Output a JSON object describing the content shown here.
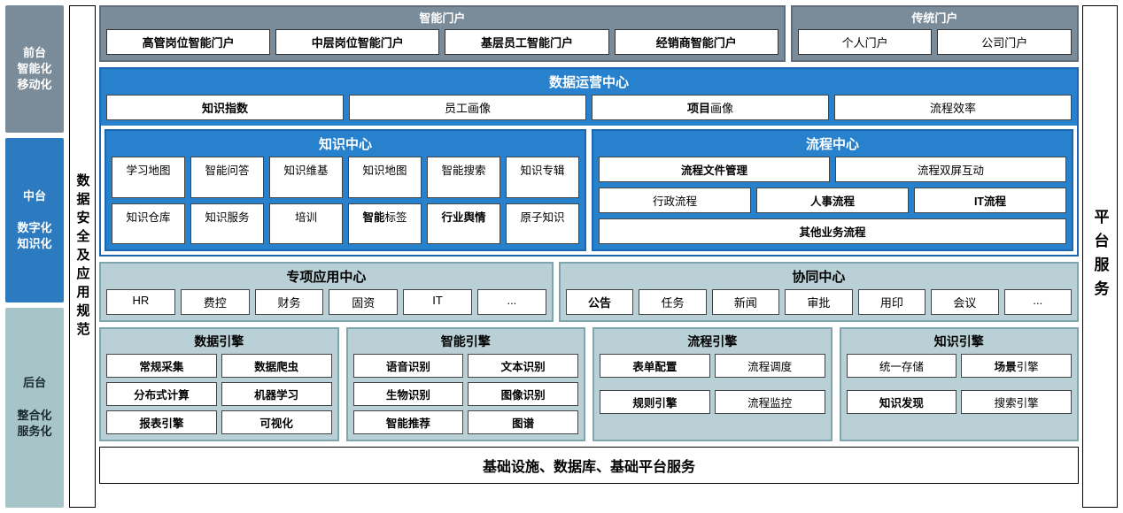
{
  "colors": {
    "gray_panel": "#7a8b99",
    "blue_panel": "#2781cc",
    "blue_border": "#1a66b0",
    "teal_panel": "#b9d1d6",
    "teal_border": "#7fa5ad",
    "white": "#ffffff",
    "black": "#000000"
  },
  "left": {
    "top": "前台\n智能化\n移动化",
    "mid": "中台\n　\n数字化\n知识化",
    "bot": "后台\n　\n整合化\n服务化"
  },
  "security": "数据安全及应用规范",
  "right": "平台服务",
  "portal": {
    "smart": {
      "title": "智能门户",
      "items": [
        "高管岗位智能门户",
        "中层岗位智能门户",
        "基层员工智能门户",
        "经销商智能门户"
      ]
    },
    "legacy": {
      "title": "传统门户",
      "items": [
        "个人门户",
        "公司门户"
      ]
    }
  },
  "dops": {
    "title": "数据运营中心",
    "items": [
      {
        "label": "知识指数",
        "bold": true
      },
      {
        "label": "员工画像",
        "bold": false
      },
      {
        "label": "项目画像",
        "bold_part": "项目",
        "rest": "画像"
      },
      {
        "label": "流程效率",
        "bold": false
      }
    ]
  },
  "knowledge_center": {
    "title": "知识中心",
    "row1": [
      "学习地图",
      "智能问答",
      "知识维基",
      "知识地图",
      "智能搜索",
      "知识专辑"
    ],
    "row2": [
      {
        "t": "知识仓库"
      },
      {
        "t": "知识服务"
      },
      {
        "t": "培训"
      },
      {
        "bold_part": "智能",
        "rest": "标签"
      },
      {
        "t": "行业舆情",
        "bold": true
      },
      {
        "t": "原子知识"
      }
    ]
  },
  "process_center": {
    "title": "流程中心",
    "row1": [
      {
        "t": "流程文件管理",
        "bold": true,
        "span": 3
      },
      {
        "t": "流程双屏互动",
        "span": 3
      }
    ],
    "row2": [
      {
        "t": "行政流程",
        "span": 2
      },
      {
        "t": "人事流程",
        "bold": true,
        "span": 2
      },
      {
        "t": "IT流程",
        "bold": true,
        "span": 2
      }
    ],
    "row3": [
      {
        "t": "其他业务流程",
        "bold": true,
        "span": 6
      }
    ]
  },
  "special_app": {
    "title": "专项应用中心",
    "items": [
      "HR",
      "费控",
      "财务",
      "固资",
      "IT",
      "..."
    ]
  },
  "collab": {
    "title": "协同中心",
    "items": [
      {
        "t": "公告",
        "bold": true
      },
      {
        "t": "任务"
      },
      {
        "t": "新闻"
      },
      {
        "t": "审批"
      },
      {
        "t": "用印"
      },
      {
        "t": "会议"
      },
      {
        "t": "..."
      }
    ]
  },
  "engines": {
    "data": {
      "title": "数据引擎",
      "items": [
        {
          "t": "常规采集",
          "bold": true
        },
        {
          "t": "数据爬虫",
          "bold": true
        },
        {
          "t": "分布式计算",
          "bold": true
        },
        {
          "t": "机器学习",
          "bold": true
        },
        {
          "t": "报表引擎",
          "bold": true
        },
        {
          "t": "可视化",
          "bold": true
        }
      ]
    },
    "smart": {
      "title": "智能引擎",
      "items": [
        {
          "t": "语音识别",
          "bold": true
        },
        {
          "t": "文本识别",
          "bold": true
        },
        {
          "t": "生物识别",
          "bold": true
        },
        {
          "t": "图像识别",
          "bold": true
        },
        {
          "t": "智能推荐",
          "bold": true
        },
        {
          "t": "图谱",
          "bold": true
        }
      ]
    },
    "process": {
      "title": "流程引擎",
      "items": [
        {
          "t": "表单配置",
          "bold": true
        },
        {
          "t": "流程调度"
        },
        {
          "t": "规则引擎",
          "bold": true
        },
        {
          "t": "流程监控"
        }
      ]
    },
    "knowledge": {
      "title": "知识引擎",
      "items": [
        {
          "t": "统一存储"
        },
        {
          "bold_part": "场景",
          "rest": "引擎"
        },
        {
          "t": "知识发现",
          "bold": true
        },
        {
          "t": "搜索引擎"
        }
      ]
    }
  },
  "footer": "基础设施、数据库、基础平台服务"
}
